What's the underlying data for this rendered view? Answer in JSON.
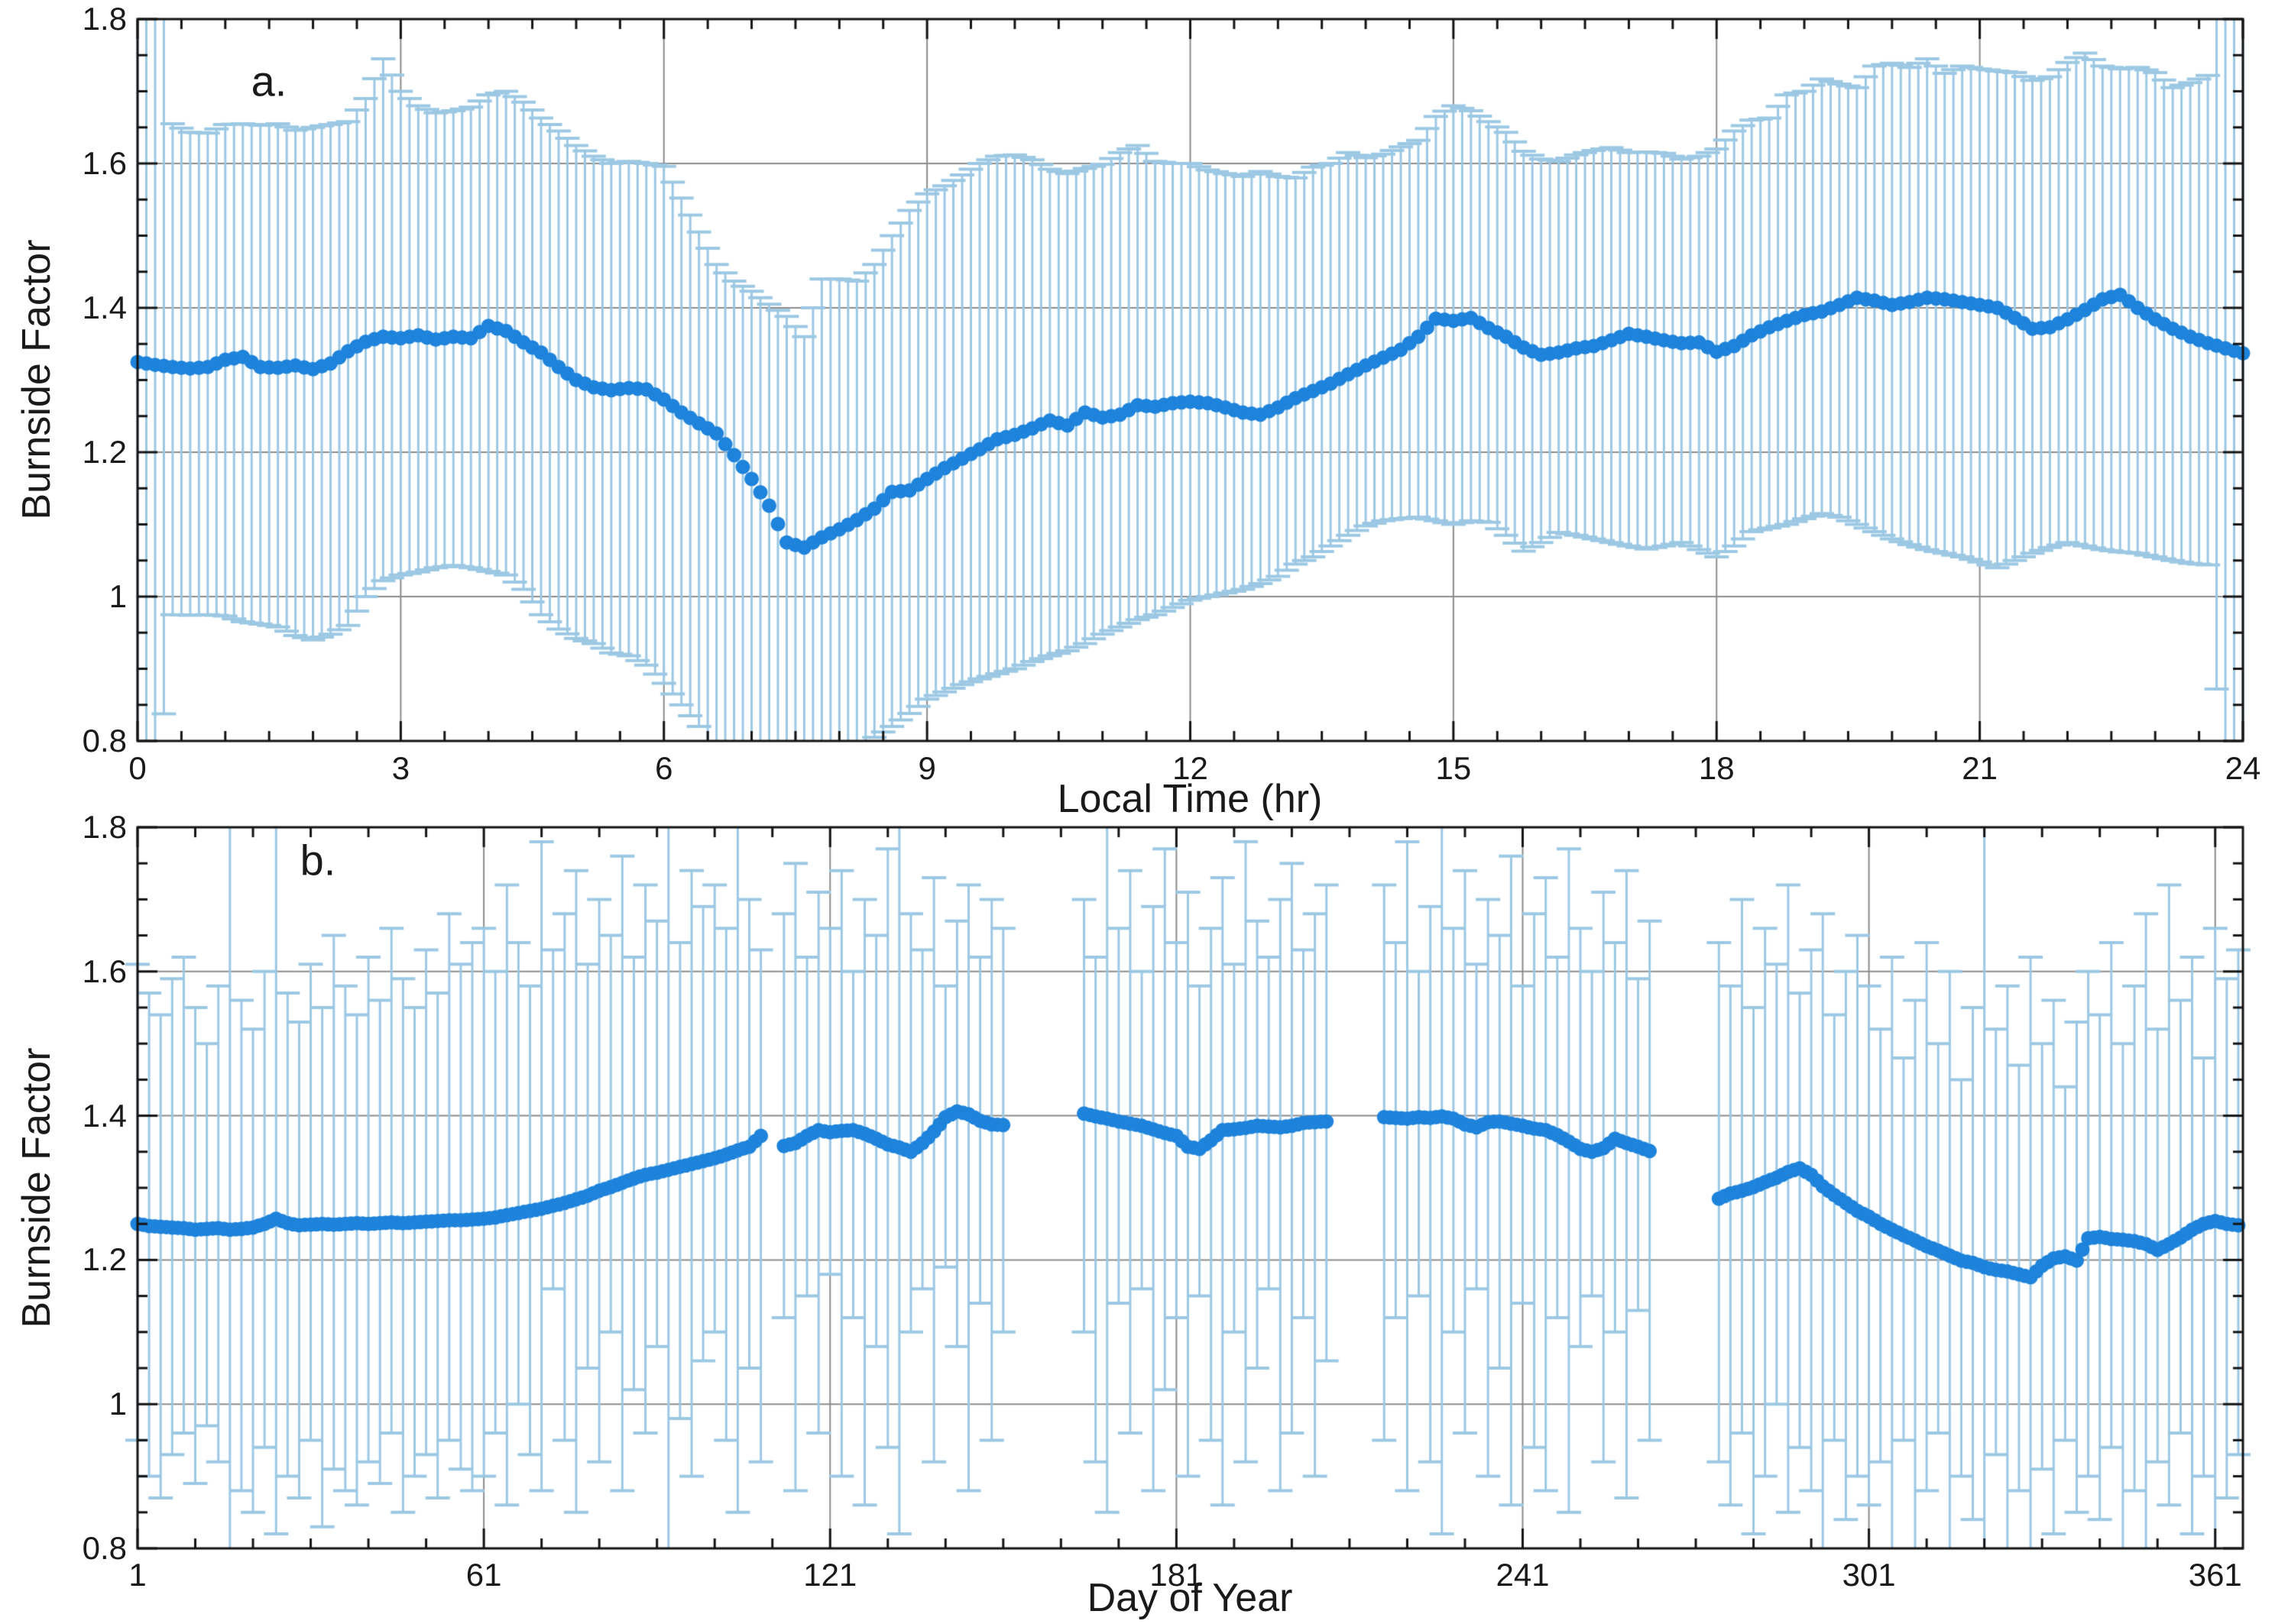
{
  "figure": {
    "ylabel": "Burnside Factor",
    "panel_a": {
      "letter": "a.",
      "xlabel": "Local Time (hr)",
      "x_tick_labels": [
        "0",
        "3",
        "6",
        "9",
        "12",
        "15",
        "18",
        "21",
        "24"
      ],
      "y_tick_labels": [
        "0.8",
        "1",
        "1.2",
        "1.4",
        "1.6",
        "1.8"
      ]
    },
    "panel_b": {
      "letter": "b.",
      "xlabel": "Day of Year",
      "x_tick_labels": [
        "1",
        "61",
        "121",
        "181",
        "241",
        "301",
        "361"
      ],
      "y_tick_labels": [
        "0.8",
        "1",
        "1.2",
        "1.4",
        "1.6",
        "1.8"
      ]
    }
  },
  "colors": {
    "dot": "#1E83DB",
    "error_bar": "#9CC8E4",
    "grid": "#8C8C8C",
    "axis": "#141414",
    "text": "#1A1A1A",
    "background": "#FFFFFF"
  },
  "chart_data": [
    {
      "type": "scatter",
      "error_bars": true,
      "title": "",
      "xlabel": "Local Time (hr)",
      "ylabel": "Burnside Factor",
      "xlim": [
        0,
        24
      ],
      "ylim": [
        0.8,
        1.8
      ],
      "x_major_ticks": [
        0,
        3,
        6,
        9,
        12,
        15,
        18,
        21,
        24
      ],
      "x_minor_step": 0.5,
      "y_major_ticks": [
        0.8,
        1,
        1.2,
        1.4,
        1.6,
        1.8
      ],
      "y_minor_step": 0.05,
      "grid": true,
      "legend": "none",
      "x0": 0,
      "dx": 0.2,
      "mean": [
        1.325,
        1.321,
        1.318,
        1.316,
        1.318,
        1.328,
        1.332,
        1.318,
        1.317,
        1.32,
        1.315,
        1.323,
        1.34,
        1.353,
        1.36,
        1.358,
        1.362,
        1.356,
        1.36,
        1.358,
        1.375,
        1.368,
        1.352,
        1.338,
        1.318,
        1.3,
        1.29,
        1.286,
        1.289,
        1.287,
        1.273,
        1.255,
        1.24,
        1.226,
        1.196,
        1.163,
        1.126,
        1.075,
        1.068,
        1.082,
        1.093,
        1.106,
        1.122,
        1.145,
        1.147,
        1.163,
        1.178,
        1.191,
        1.204,
        1.218,
        1.224,
        1.233,
        1.244,
        1.237,
        1.255,
        1.248,
        1.252,
        1.265,
        1.263,
        1.268,
        1.27,
        1.268,
        1.262,
        1.255,
        1.252,
        1.262,
        1.275,
        1.285,
        1.295,
        1.308,
        1.32,
        1.331,
        1.342,
        1.36,
        1.385,
        1.382,
        1.386,
        1.372,
        1.36,
        1.345,
        1.335,
        1.338,
        1.344,
        1.347,
        1.355,
        1.364,
        1.36,
        1.355,
        1.351,
        1.352,
        1.339,
        1.347,
        1.362,
        1.373,
        1.382,
        1.39,
        1.395,
        1.404,
        1.414,
        1.41,
        1.404,
        1.408,
        1.414,
        1.412,
        1.408,
        1.404,
        1.4,
        1.386,
        1.371,
        1.373,
        1.384,
        1.397,
        1.412,
        1.418,
        1.4,
        1.384,
        1.371,
        1.36,
        1.351,
        1.344,
        1.337
      ],
      "hi": [
        1.95,
        1.95,
        1.655,
        1.643,
        1.642,
        1.654,
        1.655,
        1.653,
        1.655,
        1.646,
        1.65,
        1.654,
        1.658,
        1.69,
        1.745,
        1.7,
        1.68,
        1.67,
        1.673,
        1.678,
        1.695,
        1.7,
        1.685,
        1.663,
        1.645,
        1.625,
        1.61,
        1.6,
        1.603,
        1.6,
        1.596,
        1.552,
        1.505,
        1.46,
        1.437,
        1.423,
        1.405,
        1.388,
        1.36,
        1.44,
        1.44,
        1.437,
        1.46,
        1.5,
        1.535,
        1.558,
        1.569,
        1.584,
        1.6,
        1.61,
        1.612,
        1.605,
        1.592,
        1.586,
        1.593,
        1.599,
        1.615,
        1.625,
        1.603,
        1.6,
        1.6,
        1.591,
        1.586,
        1.582,
        1.589,
        1.582,
        1.58,
        1.595,
        1.6,
        1.615,
        1.608,
        1.613,
        1.623,
        1.632,
        1.665,
        1.68,
        1.673,
        1.658,
        1.643,
        1.617,
        1.606,
        1.603,
        1.612,
        1.618,
        1.622,
        1.615,
        1.616,
        1.614,
        1.606,
        1.61,
        1.62,
        1.645,
        1.66,
        1.663,
        1.695,
        1.7,
        1.717,
        1.71,
        1.705,
        1.735,
        1.739,
        1.733,
        1.745,
        1.725,
        1.735,
        1.731,
        1.728,
        1.726,
        1.715,
        1.72,
        1.74,
        1.753,
        1.735,
        1.731,
        1.733,
        1.726,
        1.705,
        1.712,
        1.722,
        1.95,
        1.95
      ],
      "lo": [
        0.7,
        0.7,
        0.975,
        0.974,
        0.975,
        0.973,
        0.965,
        0.962,
        0.958,
        0.946,
        0.94,
        0.948,
        0.96,
        1.0,
        1.022,
        1.03,
        1.034,
        1.04,
        1.043,
        1.04,
        1.035,
        1.03,
        1.01,
        0.975,
        0.955,
        0.942,
        0.935,
        0.922,
        0.918,
        0.905,
        0.88,
        0.85,
        0.82,
        0.78,
        0.75,
        0.73,
        0.72,
        0.72,
        0.73,
        0.75,
        0.77,
        0.79,
        0.805,
        0.82,
        0.838,
        0.858,
        0.868,
        0.878,
        0.886,
        0.893,
        0.9,
        0.91,
        0.918,
        0.925,
        0.935,
        0.948,
        0.958,
        0.968,
        0.975,
        0.985,
        0.995,
        1.0,
        1.005,
        1.01,
        1.018,
        1.028,
        1.045,
        1.055,
        1.07,
        1.085,
        1.098,
        1.105,
        1.108,
        1.11,
        1.105,
        1.1,
        1.105,
        1.103,
        1.085,
        1.063,
        1.075,
        1.089,
        1.085,
        1.08,
        1.075,
        1.07,
        1.066,
        1.07,
        1.075,
        1.065,
        1.055,
        1.07,
        1.09,
        1.095,
        1.1,
        1.108,
        1.115,
        1.11,
        1.1,
        1.09,
        1.08,
        1.072,
        1.065,
        1.06,
        1.055,
        1.048,
        1.04,
        1.05,
        1.06,
        1.068,
        1.075,
        1.07,
        1.065,
        1.062,
        1.06,
        1.055,
        1.05,
        1.046,
        1.044,
        0.7,
        0.7
      ]
    },
    {
      "type": "scatter",
      "error_bars": true,
      "title": "",
      "xlabel": "Day of Year",
      "ylabel": "Burnside Factor",
      "xlim": [
        1,
        365.8
      ],
      "ylim": [
        0.8,
        1.8
      ],
      "x_major_ticks": [
        1,
        61,
        121,
        181,
        241,
        301,
        361
      ],
      "x_minor_step": 10,
      "y_major_ticks": [
        0.8,
        1,
        1.2,
        1.4,
        1.6,
        1.8
      ],
      "y_minor_step": 0.05,
      "grid": true,
      "legend": "none",
      "data_gaps_days": [
        [
          111,
          112
        ],
        [
          153,
          163
        ],
        [
          209,
          215
        ],
        [
          265,
          273
        ]
      ],
      "x0": 1,
      "dx": 2,
      "mean": [
        1.25,
        1.247,
        1.246,
        1.245,
        1.244,
        1.242,
        1.243,
        1.244,
        1.242,
        1.243,
        1.245,
        1.25,
        1.257,
        1.251,
        1.248,
        1.249,
        1.25,
        1.249,
        1.25,
        1.251,
        1.25,
        1.251,
        1.252,
        1.251,
        1.252,
        1.253,
        1.254,
        1.255,
        1.255,
        1.256,
        1.257,
        1.259,
        1.262,
        1.265,
        1.268,
        1.271,
        1.275,
        1.279,
        1.284,
        1.289,
        1.296,
        1.301,
        1.307,
        1.313,
        1.318,
        1.321,
        1.325,
        1.329,
        1.333,
        1.337,
        1.341,
        1.346,
        1.352,
        1.357,
        1.372,
        null,
        1.358,
        1.362,
        1.372,
        1.38,
        1.377,
        1.379,
        1.38,
        1.375,
        1.368,
        1.36,
        1.356,
        1.35,
        1.362,
        1.378,
        1.398,
        1.406,
        1.402,
        1.393,
        1.388,
        1.387,
        null,
        null,
        null,
        null,
        null,
        null,
        1.403,
        1.399,
        1.396,
        1.392,
        1.389,
        1.386,
        1.381,
        1.376,
        1.372,
        1.357,
        1.354,
        1.366,
        1.38,
        1.381,
        1.383,
        1.386,
        1.385,
        1.384,
        1.386,
        1.39,
        1.391,
        1.392,
        null,
        null,
        null,
        null,
        1.398,
        1.397,
        1.396,
        1.398,
        1.397,
        1.399,
        1.396,
        1.388,
        1.384,
        1.391,
        1.392,
        1.389,
        1.386,
        1.382,
        1.38,
        1.373,
        1.364,
        1.354,
        1.35,
        1.355,
        1.368,
        1.362,
        1.357,
        1.351,
        null,
        null,
        null,
        null,
        null,
        1.285,
        1.292,
        1.296,
        1.301,
        1.308,
        1.314,
        1.322,
        1.327,
        1.318,
        1.302,
        1.29,
        1.279,
        1.268,
        1.26,
        1.25,
        1.242,
        1.234,
        1.227,
        1.219,
        1.213,
        1.206,
        1.199,
        1.196,
        1.19,
        1.186,
        1.184,
        1.18,
        1.176,
        1.192,
        1.202,
        1.205,
        1.199,
        1.23,
        1.232,
        1.229,
        1.228,
        1.226,
        1.222,
        1.214,
        1.222,
        1.231,
        1.242,
        1.25,
        1.254,
        1.25,
        1.248
      ],
      "hi": [
        1.61,
        1.57,
        1.54,
        1.59,
        1.62,
        1.55,
        1.5,
        1.58,
        1.88,
        1.56,
        1.52,
        1.6,
        1.88,
        1.57,
        1.53,
        1.61,
        1.55,
        1.65,
        1.58,
        1.54,
        1.62,
        1.56,
        1.66,
        1.59,
        1.55,
        1.63,
        1.57,
        1.68,
        1.61,
        1.64,
        1.66,
        1.6,
        1.72,
        1.64,
        1.58,
        1.78,
        1.63,
        1.68,
        1.74,
        1.61,
        1.7,
        1.65,
        1.76,
        1.62,
        1.72,
        1.67,
        1.88,
        1.64,
        1.74,
        1.69,
        1.72,
        1.66,
        1.89,
        1.7,
        1.63,
        null,
        1.68,
        1.75,
        1.62,
        1.71,
        1.66,
        1.74,
        1.6,
        1.7,
        1.65,
        1.77,
        1.89,
        1.68,
        1.63,
        1.73,
        1.58,
        1.67,
        1.72,
        1.62,
        1.7,
        1.66,
        null,
        null,
        null,
        null,
        null,
        null,
        1.7,
        1.62,
        1.88,
        1.66,
        1.74,
        1.6,
        1.69,
        1.77,
        1.64,
        1.71,
        1.58,
        1.66,
        1.73,
        1.61,
        1.78,
        1.67,
        1.62,
        1.7,
        1.75,
        1.63,
        1.68,
        1.72,
        null,
        null,
        null,
        null,
        1.72,
        1.64,
        1.78,
        1.6,
        1.69,
        1.88,
        1.66,
        1.74,
        1.61,
        1.7,
        1.65,
        1.76,
        1.58,
        1.68,
        1.73,
        1.62,
        1.77,
        1.66,
        1.6,
        1.71,
        1.64,
        1.74,
        1.59,
        1.67,
        null,
        null,
        null,
        null,
        null,
        1.64,
        1.58,
        1.7,
        1.55,
        1.66,
        1.61,
        1.72,
        1.57,
        1.63,
        1.68,
        1.54,
        1.6,
        1.65,
        1.58,
        1.52,
        1.62,
        1.48,
        1.56,
        1.64,
        1.5,
        1.6,
        1.45,
        1.55,
        1.88,
        1.52,
        1.58,
        1.47,
        1.62,
        1.5,
        1.56,
        1.44,
        1.53,
        1.6,
        1.54,
        1.64,
        1.5,
        1.58,
        1.68,
        1.52,
        1.72,
        1.56,
        1.62,
        1.48,
        1.66,
        1.59,
        1.63
      ],
      "lo": [
        0.95,
        0.9,
        0.87,
        0.93,
        0.96,
        0.89,
        0.97,
        0.92,
        0.72,
        0.88,
        0.85,
        0.94,
        0.82,
        0.9,
        0.87,
        0.95,
        0.83,
        0.91,
        0.88,
        0.86,
        0.92,
        0.89,
        0.96,
        0.85,
        0.9,
        0.93,
        0.87,
        0.95,
        0.91,
        0.88,
        0.9,
        0.96,
        0.86,
        1.0,
        0.93,
        0.88,
        1.16,
        0.95,
        0.85,
        1.05,
        0.92,
        1.1,
        0.88,
        1.02,
        0.96,
        1.08,
        0.78,
        0.98,
        0.9,
        1.06,
        1.1,
        0.95,
        0.85,
        1.05,
        0.92,
        null,
        1.12,
        0.88,
        1.15,
        0.96,
        1.18,
        0.9,
        1.12,
        0.86,
        1.08,
        0.94,
        0.82,
        1.1,
        1.16,
        0.92,
        1.19,
        1.08,
        0.88,
        1.14,
        0.95,
        1.1,
        null,
        null,
        null,
        null,
        null,
        null,
        1.1,
        0.92,
        0.85,
        1.14,
        0.96,
        1.16,
        0.88,
        1.02,
        1.12,
        0.9,
        1.15,
        0.95,
        0.86,
        1.1,
        0.92,
        1.05,
        1.16,
        0.88,
        0.96,
        1.12,
        0.9,
        1.06,
        null,
        null,
        null,
        null,
        0.95,
        1.12,
        0.88,
        1.15,
        0.92,
        0.82,
        1.1,
        0.96,
        1.16,
        0.9,
        1.05,
        0.86,
        1.14,
        0.94,
        0.88,
        1.12,
        0.85,
        1.08,
        1.15,
        0.92,
        1.1,
        0.87,
        1.13,
        0.95,
        null,
        null,
        null,
        null,
        null,
        0.92,
        0.86,
        0.96,
        0.82,
        0.9,
        1.0,
        0.85,
        0.94,
        0.88,
        0.8,
        0.95,
        0.84,
        0.9,
        0.86,
        0.92,
        0.8,
        0.95,
        0.78,
        0.88,
        0.96,
        0.75,
        0.9,
        0.84,
        0.72,
        0.93,
        0.78,
        0.88,
        0.74,
        0.91,
        0.82,
        0.95,
        0.85,
        0.9,
        0.84,
        0.94,
        0.78,
        0.88,
        0.72,
        0.92,
        0.86,
        0.96,
        0.82,
        0.9,
        0.76,
        0.87,
        0.93
      ]
    }
  ]
}
